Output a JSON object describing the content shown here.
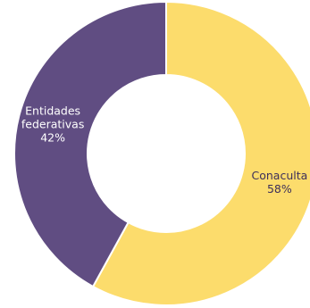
{
  "chart_data": {
    "type": "pie",
    "donut": true,
    "title": "",
    "slices": [
      {
        "label_lines": [
          "Conaculta"
        ],
        "value": 58,
        "value_label": "58%",
        "color": "#FCDC6C",
        "text_color": "#3d2f5a"
      },
      {
        "label_lines": [
          "Entidades",
          "federativas"
        ],
        "value": 42,
        "value_label": "42%",
        "color": "#604D82",
        "text_color": "#ffffff"
      }
    ],
    "start_angle_deg": 0,
    "direction": "clockwise",
    "legend": "none"
  }
}
